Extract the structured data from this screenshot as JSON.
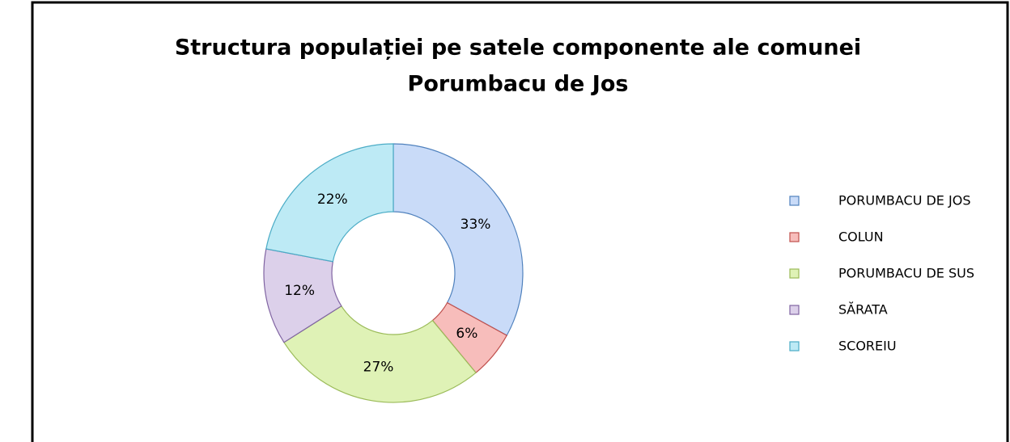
{
  "chart_data": {
    "type": "donut",
    "title": [
      "Structura populației pe satele componente ale comunei",
      "Porumbacu de Jos"
    ],
    "categories": [
      "PORUMBACU DE JOS",
      "COLUN",
      "PORUMBACU DE SUS",
      "SĂRATA",
      "SCOREIU"
    ],
    "values": [
      33,
      6,
      27,
      12,
      22
    ],
    "value_labels": [
      "33%",
      "6%",
      "27%",
      "12%",
      "22%"
    ],
    "colors": [
      "#c9dbf8",
      "#f7bdbb",
      "#dff2b6",
      "#dcd0ea",
      "#bdeaf5"
    ],
    "stroke_colors": [
      "#4f81bd",
      "#c0504d",
      "#9bbb59",
      "#8064a2",
      "#4bacc6"
    ],
    "legend": "right"
  }
}
